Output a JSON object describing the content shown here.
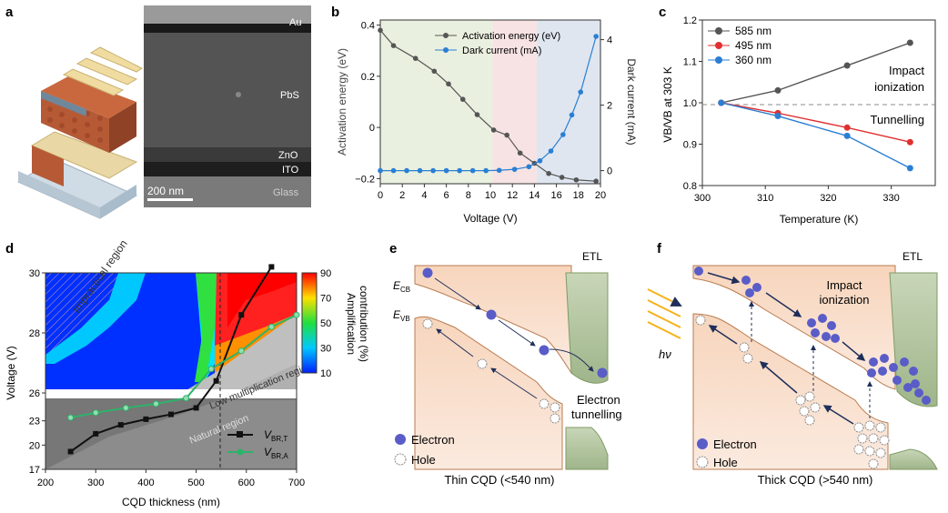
{
  "panels": {
    "a": {
      "label": "a",
      "layers": [
        "Au",
        "PbS",
        "ZnO",
        "ITO",
        "Glass"
      ],
      "scale_bar": "200 nm"
    },
    "b": {
      "label": "b",
      "ylabel_left": "Activation energy (eV)",
      "ylabel_right": "Dark current (mA)",
      "xlabel": "Voltage (V)"
    },
    "c": {
      "label": "c",
      "ylabel": "VB/VB at 303 K",
      "xlabel": "Temperature (K)",
      "annotation_top": [
        "Impact",
        "ionization"
      ],
      "annotation_bottom": "Tunnelling"
    },
    "d": {
      "label": "d",
      "ylabel": "Voltage (V)",
      "xlabel": "CQD thickness (nm)",
      "colorbar_label": [
        "Amplification",
        "contribution (%)"
      ],
      "colorbar_ticks": [
        "90",
        "70",
        "50",
        "30",
        "10"
      ],
      "regions": [
        "Impractical region",
        "Low multiplication region",
        "Natural region"
      ],
      "legend": [
        "V",
        "BR,T",
        "V",
        "BR,A"
      ]
    },
    "e": {
      "label": "e",
      "etl": "ETL",
      "ecb": "E",
      "ecb_sub": "CB",
      "evb": "E",
      "evb_sub": "VB",
      "tunnel_text": [
        "Electron",
        "tunnelling"
      ],
      "legend": [
        "Electron",
        "Hole"
      ],
      "caption": "Thin CQD (<540 nm)"
    },
    "f": {
      "label": "f",
      "etl": "ETL",
      "hv": "hν",
      "impact_text": [
        "Impact",
        "ionization"
      ],
      "legend": [
        "Electron",
        "Hole"
      ],
      "caption": "Thick CQD (>540 nm)"
    }
  },
  "colors": {
    "activation": "#555555",
    "dark_current": "#2a7fd4",
    "c585": "#555555",
    "c495": "#e03030",
    "c360": "#2a7fd4",
    "electron": "#5a5cc8",
    "band": "#f2c9a8",
    "etl": "#9fb58a"
  },
  "chart_data": [
    {
      "panel": "b",
      "type": "line",
      "x": [
        0,
        1,
        2,
        3,
        4,
        5,
        6,
        7,
        8,
        9,
        10,
        11,
        12,
        13,
        14,
        15,
        16,
        17,
        18,
        19,
        20
      ],
      "xticks": [
        "0",
        "2",
        "4",
        "6",
        "8",
        "10",
        "12",
        "14",
        "16",
        "18",
        "20"
      ],
      "series": [
        {
          "name": "Activation energy (eV)",
          "axis": "left",
          "x": [
            0,
            1.2,
            3.2,
            4.9,
            6.2,
            7.5,
            8.8,
            10.3,
            11.5,
            12.7,
            14.0,
            15.3,
            16.5,
            17.8,
            19.6
          ],
          "values": [
            0.38,
            0.32,
            0.27,
            0.22,
            0.17,
            0.11,
            0.05,
            -0.01,
            -0.03,
            -0.1,
            -0.14,
            -0.18,
            -0.195,
            -0.205,
            -0.21
          ]
        },
        {
          "name": "Dark current (mA)",
          "axis": "right",
          "x": [
            0,
            1.2,
            2.4,
            3.6,
            4.8,
            6.0,
            7.2,
            8.4,
            9.6,
            10.8,
            12.2,
            13.5,
            14.5,
            15.5,
            16.6,
            17.4,
            18.2,
            19.6
          ],
          "values": [
            0,
            0,
            0,
            0,
            0,
            0,
            0,
            0,
            0,
            0.01,
            0.04,
            0.12,
            0.3,
            0.6,
            1.1,
            1.7,
            2.4,
            4.1
          ]
        }
      ],
      "ylim_left": [
        -0.22,
        0.42
      ],
      "ylim_right": [
        -0.4,
        4.6
      ],
      "yticks_left": [
        "0.4",
        "0.2",
        "0",
        "−0.2"
      ],
      "yticks_right": [
        "4",
        "2",
        "0"
      ],
      "shaded": [
        {
          "from": 0,
          "to": 10.2,
          "color": "#eaf0df"
        },
        {
          "from": 10.2,
          "to": 14.2,
          "color": "#f7e3e3"
        },
        {
          "from": 14.2,
          "to": 20,
          "color": "#dfe6f0"
        }
      ]
    },
    {
      "panel": "c",
      "type": "line",
      "x": [
        303,
        312,
        323,
        333
      ],
      "xticks": [
        "300",
        "310",
        "320",
        "330"
      ],
      "ylim": [
        0.8,
        1.2
      ],
      "yticks": [
        "1.2",
        "1.1",
        "1.0",
        "0.9",
        "0.8"
      ],
      "series": [
        {
          "name": "585 nm",
          "values": [
            1.0,
            1.03,
            1.09,
            1.145
          ]
        },
        {
          "name": "495 nm",
          "values": [
            1.0,
            0.975,
            0.94,
            0.905
          ]
        },
        {
          "name": "360 nm",
          "values": [
            1.0,
            0.968,
            0.92,
            0.842
          ]
        }
      ]
    },
    {
      "panel": "d",
      "type": "line",
      "xticks": [
        "200",
        "300",
        "400",
        "500",
        "600",
        "700"
      ],
      "yticks": [
        "30",
        "28",
        "26",
        "23",
        "20",
        "17"
      ],
      "series": [
        {
          "name": "VBR,T",
          "x": [
            250,
            300,
            350,
            400,
            450,
            500,
            540,
            590,
            650
          ],
          "values": [
            19.2,
            21.4,
            22.5,
            23.2,
            23.8,
            24.6,
            26.4,
            28.6,
            30.2
          ]
        },
        {
          "name": "VBR,A",
          "x": [
            250,
            300,
            360,
            420,
            480,
            530,
            590,
            650,
            700
          ],
          "values": [
            23.4,
            24.0,
            24.6,
            25.1,
            25.8,
            26.8,
            27.4,
            28.2,
            28.6
          ]
        }
      ]
    }
  ]
}
